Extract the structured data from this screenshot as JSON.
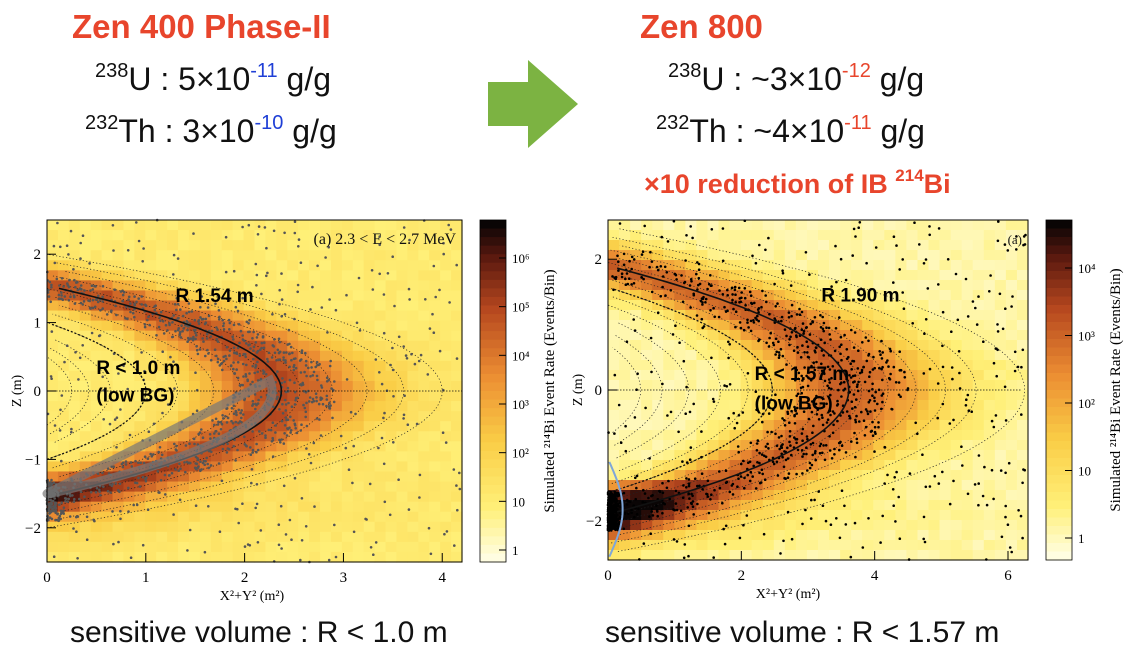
{
  "left": {
    "title": "Zen 400 Phase-II",
    "u_mass": "238",
    "u_el": "U",
    "u_sep": " : ",
    "u_mant": "5×10",
    "u_exp": "-11",
    "u_unit": " g/g",
    "th_mass": "232",
    "th_el": "Th",
    "th_sep": " : ",
    "th_mant": "3×10",
    "th_exp": "-10",
    "th_unit": " g/g",
    "caption": "sensitive volume : R < 1.0 m"
  },
  "right": {
    "title": "Zen 800",
    "u_mass": "238",
    "u_el": "U",
    "u_sep": " : ",
    "u_mant": "~3×10",
    "u_exp": "-12",
    "u_unit": " g/g",
    "th_mass": "232",
    "th_el": "Th",
    "th_sep": " : ",
    "th_mant": "~4×10",
    "th_exp": "-11",
    "th_unit": " g/g",
    "reduction_pre": "×10 reduction of IB ",
    "reduction_mass": "214",
    "reduction_el": "Bi",
    "caption": "sensitive volume : R < 1.57 m"
  },
  "colors": {
    "title_red": "#e8452c",
    "left_exp_blue": "#1f3fd6",
    "right_exp_red": "#e8452c",
    "arrow_green": "#7cb342"
  },
  "chart_data": [
    {
      "type": "heatmap",
      "panel_label": "(a) 2.3 < E < 2.7 MeV",
      "xlabel": "X²+Y² (m²)",
      "ylabel": "Z (m)",
      "colorbar_label": "Simulated ²¹⁴Bi Event Rate (Events/Bin)",
      "xlim": [
        0,
        4.2
      ],
      "ylim": [
        -2.5,
        2.5
      ],
      "xticks": [
        "0",
        "1",
        "2",
        "3",
        "4"
      ],
      "yticks": [
        "2",
        "1",
        "0",
        "−1",
        "−2"
      ],
      "colorbar_ticks": [
        "10⁶",
        "10⁵",
        "10⁴",
        "10³",
        "10²",
        "10",
        "1"
      ],
      "annotations": [
        {
          "text": "R 1.54 m",
          "x": 1.3,
          "y": 1.3
        },
        {
          "text": "R < 1.0 m",
          "x": 0.5,
          "y": 0.25
        },
        {
          "text": "(low BG)",
          "x": 0.5,
          "y": -0.15
        }
      ],
      "boundary_radius_m": 1.54,
      "fiducial_radius_m": 1.0
    },
    {
      "type": "heatmap",
      "panel_label": "(a)",
      "xlabel": "X²+Y² (m²)",
      "ylabel": "Z (m)",
      "colorbar_label": "Simulated ²¹⁴Bi Event Rate (Events/Bin)",
      "xlim": [
        0,
        6.3
      ],
      "ylim": [
        -2.6,
        2.6
      ],
      "xticks": [
        "0",
        "2",
        "4",
        "6"
      ],
      "yticks": [
        "2",
        "0",
        "−2"
      ],
      "colorbar_ticks": [
        "10⁴",
        "10³",
        "10²",
        "10",
        "1"
      ],
      "annotations": [
        {
          "text": "R 1.90 m",
          "x": 3.2,
          "y": 1.35
        },
        {
          "text": "R < 1.57 m",
          "x": 2.2,
          "y": 0.15
        },
        {
          "text": "(low BG)",
          "x": 2.2,
          "y": -0.3
        }
      ],
      "boundary_radius_m": 1.9,
      "fiducial_radius_m": 1.57
    }
  ]
}
